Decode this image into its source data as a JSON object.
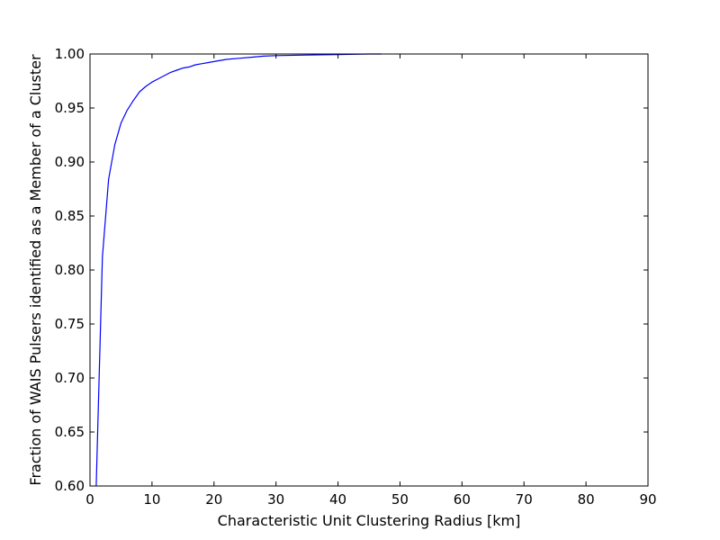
{
  "chart_data": {
    "type": "line",
    "title": "",
    "xlabel": "Characteristic Unit Clustering Radius [km]",
    "ylabel": "Fraction of WAIS Pulsers identified as a Member of a Cluster",
    "xlim": [
      0,
      90
    ],
    "ylim": [
      0.6,
      1.0
    ],
    "xticks": [
      "0",
      "10",
      "20",
      "30",
      "40",
      "50",
      "60",
      "70",
      "80",
      "90"
    ],
    "yticks": [
      "0.60",
      "0.65",
      "0.70",
      "0.75",
      "0.80",
      "0.85",
      "0.90",
      "0.95",
      "1.00"
    ],
    "grid": false,
    "legend": "none",
    "series": [
      {
        "color": "#0000ff",
        "x": [
          1,
          2,
          3,
          4,
          5,
          6,
          7,
          8,
          9,
          10,
          11,
          12,
          13,
          14,
          15,
          16,
          17,
          18,
          19,
          20,
          22,
          24,
          26,
          28,
          30,
          35,
          40,
          45,
          47
        ],
        "y": [
          0.6,
          0.812,
          0.884,
          0.916,
          0.936,
          0.948,
          0.957,
          0.965,
          0.97,
          0.974,
          0.977,
          0.98,
          0.983,
          0.985,
          0.987,
          0.988,
          0.99,
          0.991,
          0.992,
          0.993,
          0.995,
          0.996,
          0.997,
          0.998,
          0.9985,
          0.999,
          0.9995,
          1.0,
          1.0
        ]
      }
    ]
  }
}
